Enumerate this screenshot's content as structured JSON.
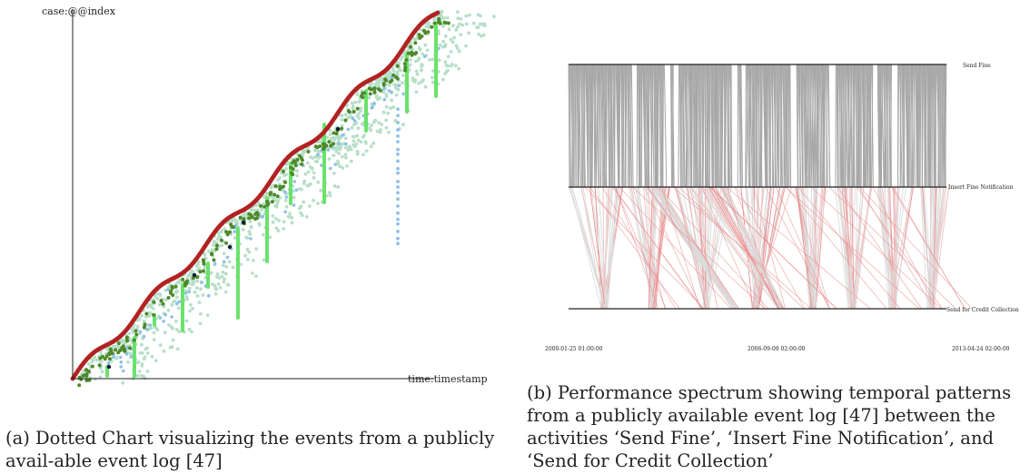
{
  "captions": {
    "a": "(a) Dotted Chart visualizing the events from a publicly avail-able event log [47]",
    "b": "(b) Performance spectrum showing temporal patterns from a publicly available event log [47] between the activities ‘Send Fine’, ‘Insert Fine Notification’, and ‘Send for Credit Collection’"
  },
  "chart_data": [
    {
      "type": "scatter",
      "title": "",
      "xlabel": "time:timestamp",
      "ylabel": "case:@@index",
      "grid": false,
      "legend": "none",
      "colors": {
        "first_event": "#b22222",
        "dense_events": "#b7dfc8",
        "mid_events": "#4e8a2a",
        "late_events": "#8fbfe8",
        "stripes": "#6be26b",
        "outliers": "#0d1b3a"
      }
    },
    {
      "type": "performance-spectrum",
      "activities": [
        "Send Fine",
        "Insert Fine Notification",
        "Send for Credit Collection"
      ],
      "time_ticks": [
        "2000-01-25 01:00:00",
        "2006-09-09 02:00:00",
        "2013-04-24 02:00:00"
      ],
      "grid": false,
      "legend": "none",
      "segments": [
        {
          "from": "Send Fine",
          "to": "Insert Fine Notification",
          "color": "#a6a6a6"
        },
        {
          "from": "Insert Fine Notification",
          "to": "Send for Credit Collection",
          "color": "#e0a5a5"
        }
      ]
    }
  ]
}
